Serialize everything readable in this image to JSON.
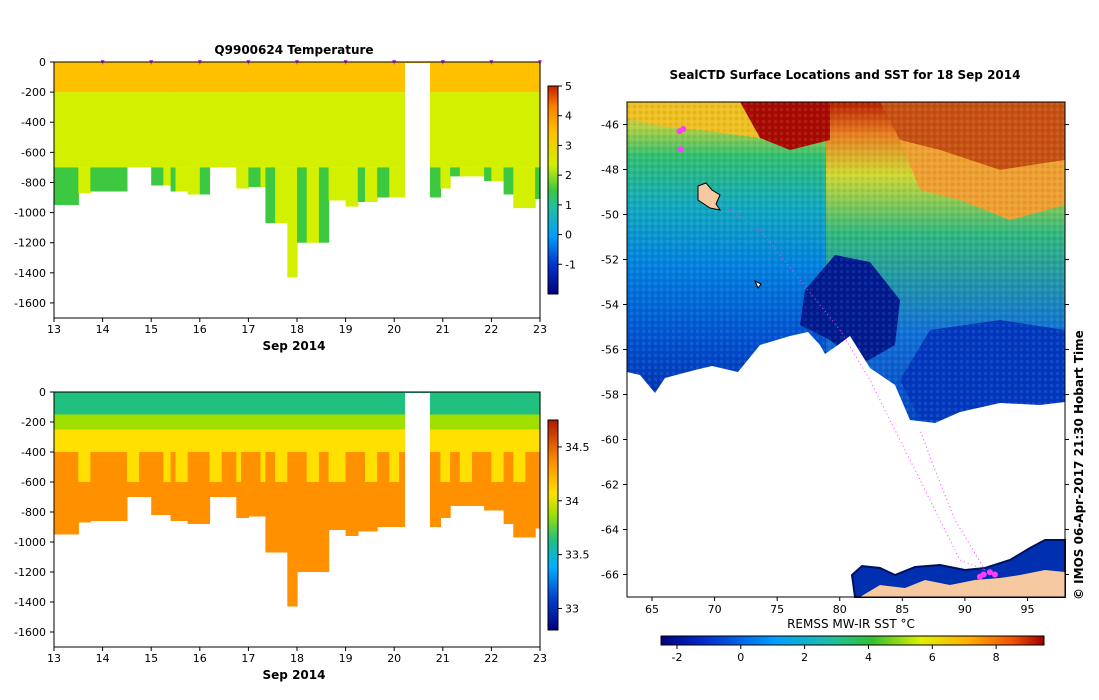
{
  "chart_data": [
    {
      "type": "heatmap",
      "title": "Q9900624  Temperature",
      "xlabel": "Sep 2014",
      "ylabel": "",
      "xlim": [
        13,
        23
      ],
      "ylim": [
        -1700,
        0
      ],
      "x_ticks": [
        "13",
        "14",
        "15",
        "16",
        "17",
        "18",
        "19",
        "20",
        "21",
        "22",
        "23"
      ],
      "y_ticks": [
        "0",
        "-200",
        "-400",
        "-600",
        "-800",
        "-1000",
        "-1200",
        "-1400",
        "-1600"
      ],
      "colorbar": {
        "range": [
          -2,
          5
        ],
        "ticks": [
          "-1",
          "0",
          "1",
          "2",
          "3",
          "4",
          "5"
        ]
      },
      "profiles": {
        "x": [
          13.0,
          13.5,
          13.75,
          14.5,
          14.75,
          15.0,
          15.25,
          15.4,
          15.5,
          15.75,
          16.0,
          16.2,
          16.45,
          16.75,
          16.85,
          17.0,
          17.25,
          17.35,
          17.55,
          17.8,
          18.0,
          18.2,
          18.45,
          18.65,
          19.0,
          19.25,
          19.4,
          19.65,
          19.9,
          20.1,
          20.3,
          20.95,
          21.15,
          21.35,
          21.6,
          21.85,
          22.0,
          22.25,
          22.45,
          22.7,
          22.9
        ],
        "bottom_depth": [
          -950,
          -870,
          -860,
          -700,
          -700,
          -820,
          -820,
          -860,
          -860,
          -880,
          -880,
          -700,
          -700,
          -840,
          -840,
          -830,
          -830,
          -1070,
          -1070,
          -1430,
          -1200,
          -1200,
          -1200,
          -920,
          -960,
          -930,
          -930,
          -900,
          -900,
          -900,
          -900,
          -840,
          -760,
          -760,
          -760,
          -790,
          -790,
          -880,
          -970,
          -970,
          -910
        ]
      },
      "data_gap": [
        20.3,
        20.8
      ],
      "temperature_layers": [
        {
          "top": 0,
          "bottom": -200,
          "value": 3.8
        },
        {
          "top": -200,
          "bottom": -700,
          "value": 2.6
        },
        {
          "top": -700,
          "bottom": -1500,
          "value": 2.3
        }
      ]
    },
    {
      "type": "heatmap",
      "title": "",
      "xlabel": "Sep 2014",
      "ylabel": "",
      "xlim": [
        13,
        23
      ],
      "ylim": [
        -1700,
        0
      ],
      "x_ticks": [
        "13",
        "14",
        "15",
        "16",
        "17",
        "18",
        "19",
        "20",
        "21",
        "22",
        "23"
      ],
      "y_ticks": [
        "0",
        "-200",
        "-400",
        "-600",
        "-800",
        "-1000",
        "-1200",
        "-1400",
        "-1600"
      ],
      "colorbar": {
        "range": [
          32.8,
          34.75
        ],
        "ticks": [
          "33",
          "33.5",
          "34",
          "34.5"
        ]
      },
      "salinity_layers": [
        {
          "top": 0,
          "bottom": -150,
          "value": 33.8
        },
        {
          "top": -150,
          "bottom": -250,
          "value": 33.95
        },
        {
          "top": -250,
          "bottom": -400,
          "value": 34.15
        },
        {
          "top": -400,
          "bottom": -600,
          "value": 34.35
        },
        {
          "top": -600,
          "bottom": -800,
          "value": 34.5
        },
        {
          "top": -800,
          "bottom": -1500,
          "value": 34.65
        }
      ]
    },
    {
      "type": "heatmap",
      "title": "SealCTD Surface Locations and SST for 18 Sep 2014",
      "xlabel": "REMSS MW-IR SST °C",
      "ylabel": "",
      "xlim": [
        63,
        98
      ],
      "ylim": [
        -67,
        -45
      ],
      "x_ticks": [
        "65",
        "70",
        "75",
        "80",
        "85",
        "90",
        "95"
      ],
      "y_ticks": [
        "-46",
        "-48",
        "-50",
        "-52",
        "-54",
        "-56",
        "-58",
        "-60",
        "-62",
        "-64",
        "-66"
      ],
      "colorbar": {
        "range": [
          -2.5,
          9.5
        ],
        "ticks": [
          "-2",
          "0",
          "2",
          "4",
          "6",
          "8"
        ]
      },
      "seal_locations": [
        {
          "lon": 67.2,
          "lat": -46.3
        },
        {
          "lon": 67.5,
          "lat": -46.2
        },
        {
          "lon": 67.3,
          "lat": -47.1
        },
        {
          "lon": 91.5,
          "lat": -66.0
        },
        {
          "lon": 92.0,
          "lat": -65.9
        },
        {
          "lon": 91.2,
          "lat": -66.1
        },
        {
          "lon": 92.4,
          "lat": -66.0
        }
      ]
    }
  ],
  "watermark": "© IMOS 06-Apr-2017 21:30 Hobart Time",
  "colors": {
    "land": "#f7c9a0",
    "marker": "#ff3cff",
    "frame": "#000000"
  }
}
